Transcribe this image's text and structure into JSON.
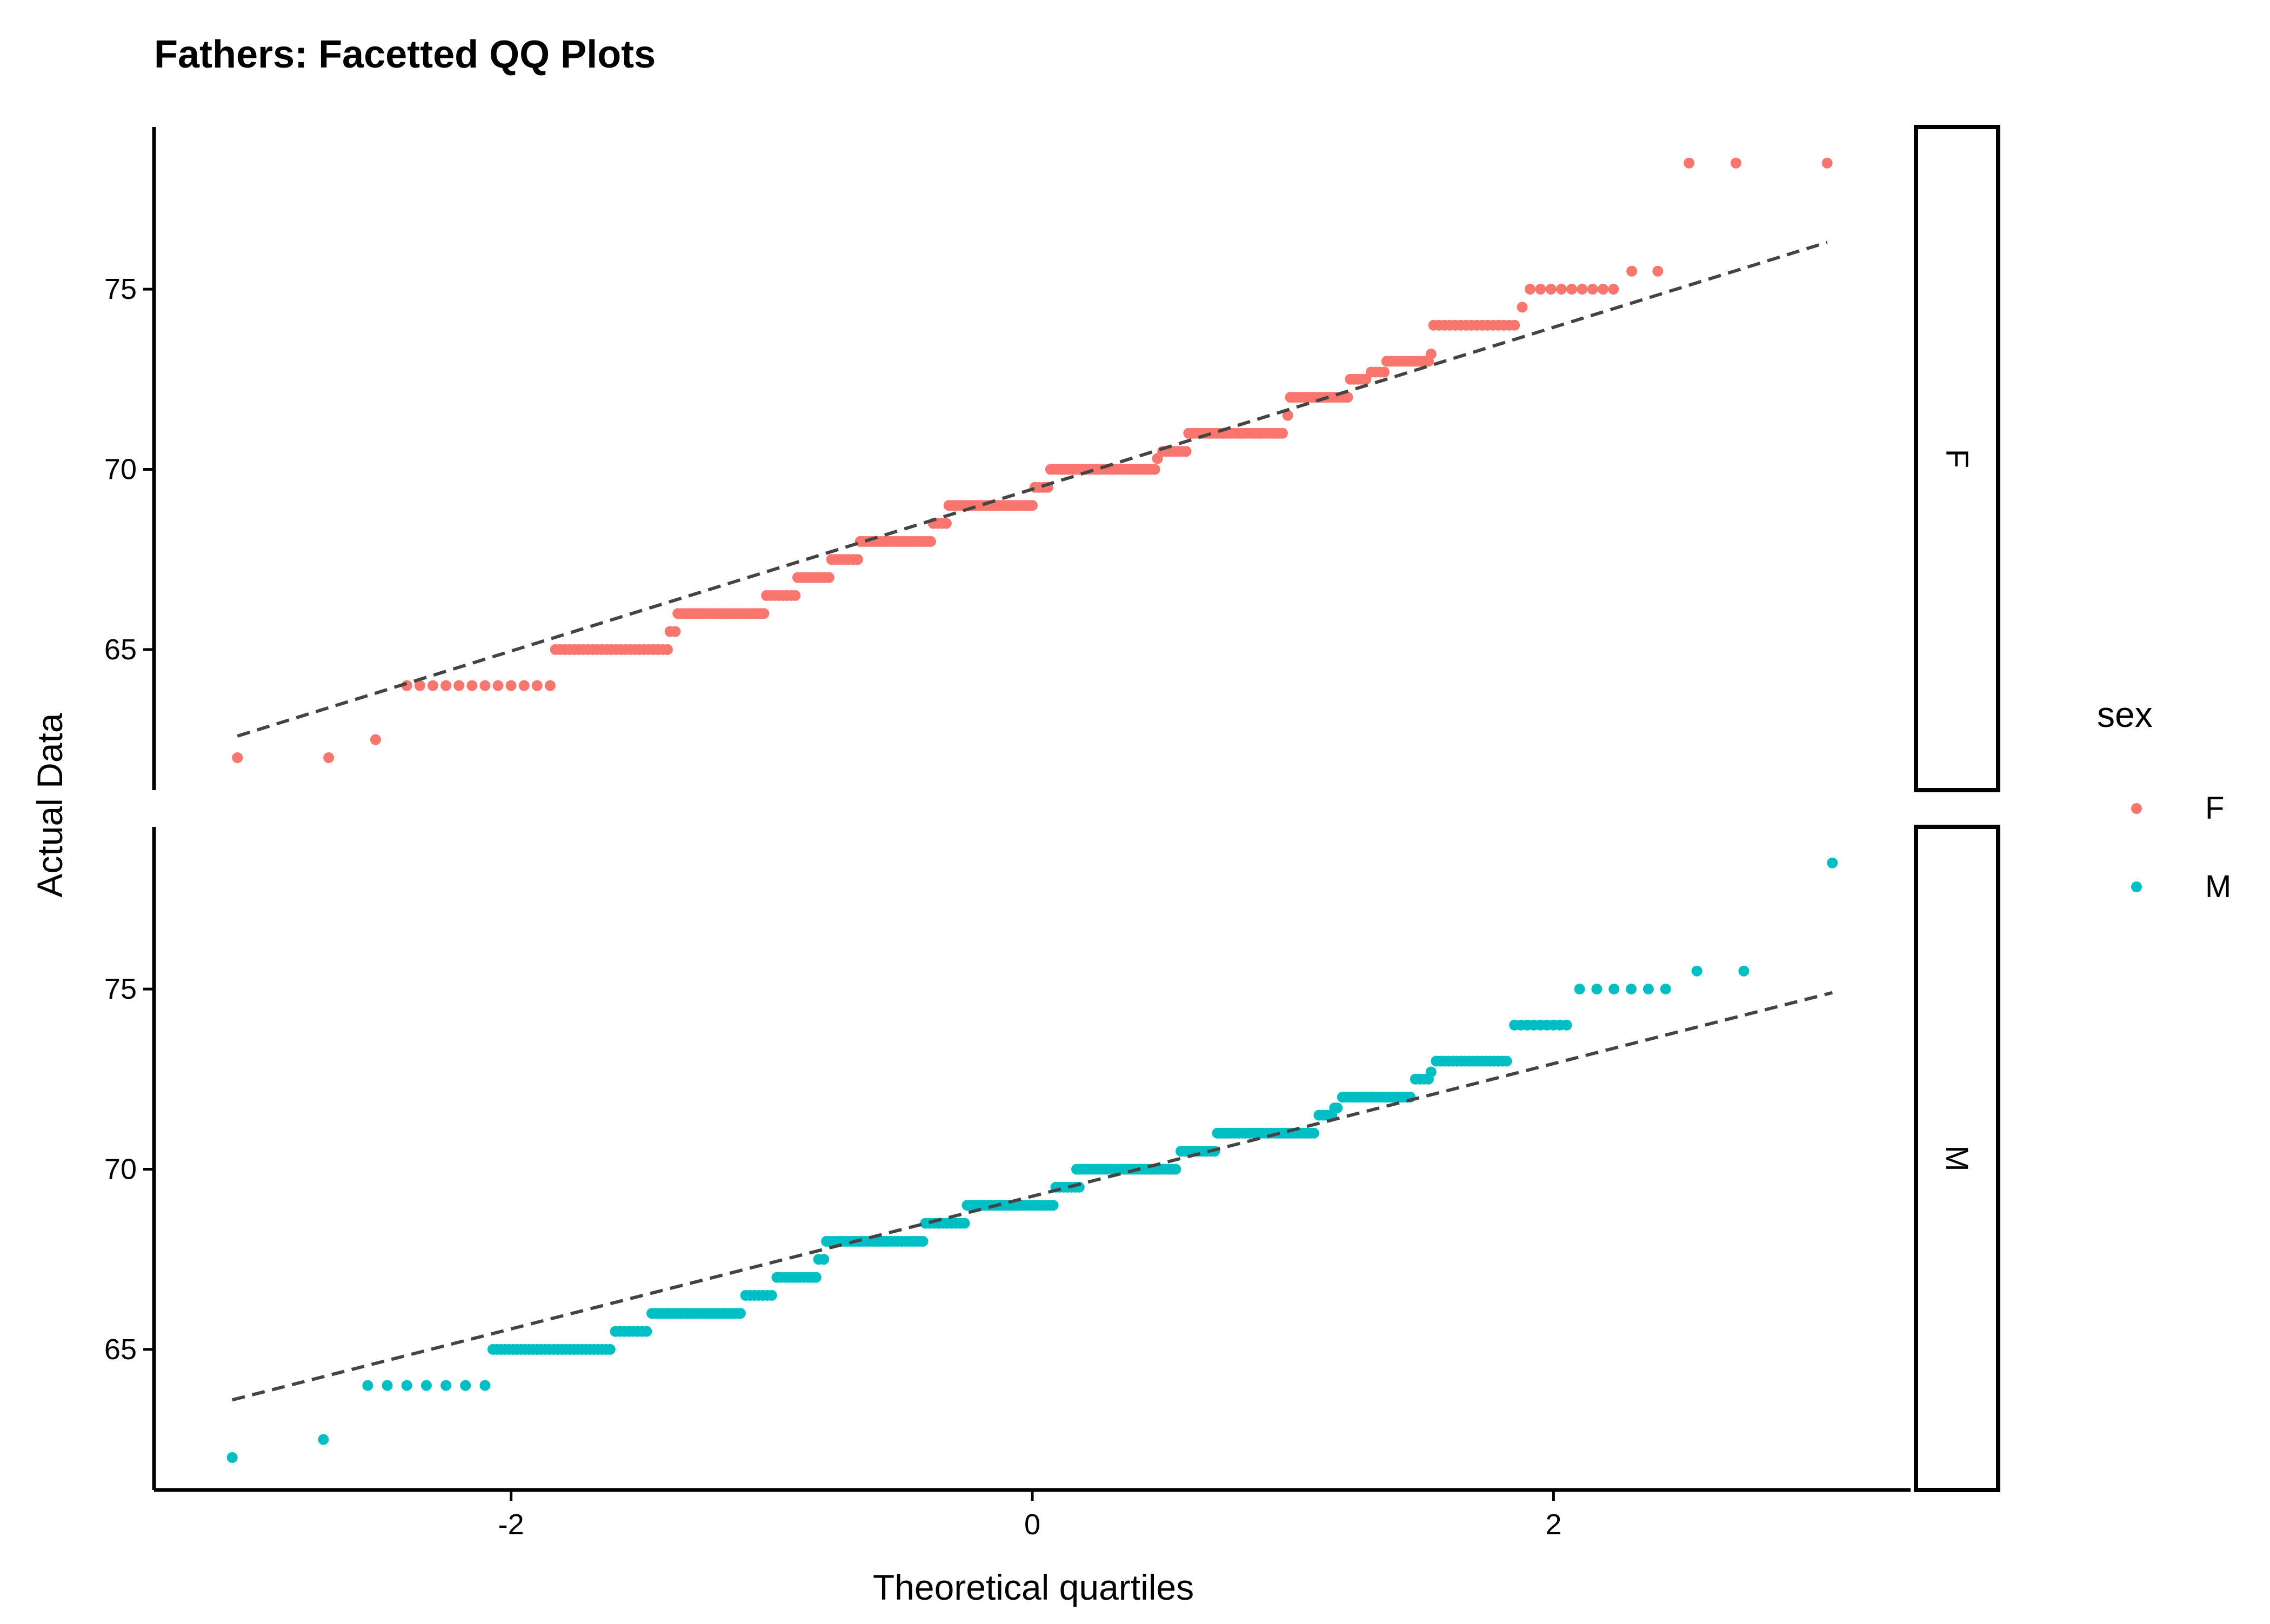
{
  "chart_data": {
    "type": "scatter",
    "title": "Fathers: Facetted QQ Plots",
    "xlabel": "Theoretical quartiles",
    "ylabel": "Actual Data",
    "xlim": [
      -3.37,
      3.37
    ],
    "ylim": [
      61.1,
      79.5
    ],
    "x_ticks": [
      -2,
      0,
      2
    ],
    "y_ticks": [
      65,
      70,
      75
    ],
    "legend": {
      "title": "sex",
      "position": "right",
      "entries": [
        {
          "label": "F",
          "color": "#F8766D"
        },
        {
          "label": "M",
          "color": "#00BFC4"
        }
      ]
    },
    "reference_line_color": "#444444",
    "facets": [
      {
        "label": "F",
        "color": "#F8766D",
        "line": {
          "x": [
            -3.05,
            3.05
          ],
          "y": [
            62.6,
            76.3
          ]
        },
        "steps": [
          {
            "y": 62.0,
            "x_from": -3.05,
            "x_to": -3.05,
            "n": 1
          },
          {
            "y": 62.0,
            "x_from": -2.7,
            "x_to": -2.7,
            "n": 1
          },
          {
            "y": 62.5,
            "x_from": -2.52,
            "x_to": -2.52,
            "n": 1
          },
          {
            "y": 64.0,
            "x_from": -2.4,
            "x_to": -1.85,
            "n": 12
          },
          {
            "y": 65.0,
            "x_from": -1.83,
            "x_to": -1.4,
            "n": 25
          },
          {
            "y": 65.5,
            "x_from": -1.39,
            "x_to": -1.37,
            "n": 2
          },
          {
            "y": 66.0,
            "x_from": -1.36,
            "x_to": -1.03,
            "n": 25
          },
          {
            "y": 66.5,
            "x_from": -1.02,
            "x_to": -0.91,
            "n": 8
          },
          {
            "y": 67.0,
            "x_from": -0.9,
            "x_to": -0.78,
            "n": 9
          },
          {
            "y": 67.5,
            "x_from": -0.77,
            "x_to": -0.67,
            "n": 7
          },
          {
            "y": 68.0,
            "x_from": -0.66,
            "x_to": -0.39,
            "n": 22
          },
          {
            "y": 68.5,
            "x_from": -0.38,
            "x_to": -0.33,
            "n": 4
          },
          {
            "y": 69.0,
            "x_from": -0.32,
            "x_to": 0.0,
            "n": 26
          },
          {
            "y": 69.5,
            "x_from": 0.01,
            "x_to": 0.06,
            "n": 4
          },
          {
            "y": 70.0,
            "x_from": 0.07,
            "x_to": 0.47,
            "n": 30
          },
          {
            "y": 70.3,
            "x_from": 0.48,
            "x_to": 0.48,
            "n": 1
          },
          {
            "y": 70.5,
            "x_from": 0.5,
            "x_to": 0.59,
            "n": 7
          },
          {
            "y": 71.0,
            "x_from": 0.6,
            "x_to": 0.96,
            "n": 28
          },
          {
            "y": 71.5,
            "x_from": 0.98,
            "x_to": 0.98,
            "n": 1
          },
          {
            "y": 72.0,
            "x_from": 0.99,
            "x_to": 1.21,
            "n": 17
          },
          {
            "y": 72.5,
            "x_from": 1.22,
            "x_to": 1.28,
            "n": 5
          },
          {
            "y": 72.7,
            "x_from": 1.3,
            "x_to": 1.35,
            "n": 4
          },
          {
            "y": 73.0,
            "x_from": 1.36,
            "x_to": 1.52,
            "n": 12
          },
          {
            "y": 73.2,
            "x_from": 1.53,
            "x_to": 1.53,
            "n": 1
          },
          {
            "y": 74.0,
            "x_from": 1.54,
            "x_to": 1.85,
            "n": 16
          },
          {
            "y": 74.5,
            "x_from": 1.88,
            "x_to": 1.88,
            "n": 1
          },
          {
            "y": 75.0,
            "x_from": 1.91,
            "x_to": 2.23,
            "n": 9
          },
          {
            "y": 75.5,
            "x_from": 2.3,
            "x_to": 2.4,
            "n": 2
          },
          {
            "y": 78.5,
            "x_from": 2.52,
            "x_to": 2.52,
            "n": 1
          },
          {
            "y": 78.5,
            "x_from": 2.7,
            "x_to": 2.7,
            "n": 1
          },
          {
            "y": 78.5,
            "x_from": 3.05,
            "x_to": 3.05,
            "n": 1
          }
        ]
      },
      {
        "label": "M",
        "color": "#00BFC4",
        "line": {
          "x": [
            -3.07,
            3.07
          ],
          "y": [
            63.6,
            74.9
          ]
        },
        "steps": [
          {
            "y": 62.0,
            "x_from": -3.07,
            "x_to": -3.07,
            "n": 1
          },
          {
            "y": 62.5,
            "x_from": -2.72,
            "x_to": -2.72,
            "n": 1
          },
          {
            "y": 64.0,
            "x_from": -2.55,
            "x_to": -2.1,
            "n": 7
          },
          {
            "y": 65.0,
            "x_from": -2.07,
            "x_to": -1.62,
            "n": 30
          },
          {
            "y": 65.5,
            "x_from": -1.6,
            "x_to": -1.48,
            "n": 8
          },
          {
            "y": 66.0,
            "x_from": -1.46,
            "x_to": -1.12,
            "n": 26
          },
          {
            "y": 66.5,
            "x_from": -1.1,
            "x_to": -1.0,
            "n": 7
          },
          {
            "y": 67.0,
            "x_from": -0.98,
            "x_to": -0.83,
            "n": 11
          },
          {
            "y": 67.5,
            "x_from": -0.82,
            "x_to": -0.8,
            "n": 2
          },
          {
            "y": 68.0,
            "x_from": -0.79,
            "x_to": -0.42,
            "n": 28
          },
          {
            "y": 68.5,
            "x_from": -0.41,
            "x_to": -0.26,
            "n": 10
          },
          {
            "y": 69.0,
            "x_from": -0.25,
            "x_to": 0.08,
            "n": 26
          },
          {
            "y": 69.5,
            "x_from": 0.09,
            "x_to": 0.18,
            "n": 7
          },
          {
            "y": 70.0,
            "x_from": 0.17,
            "x_to": 0.55,
            "n": 30
          },
          {
            "y": 70.5,
            "x_from": 0.57,
            "x_to": 0.7,
            "n": 9
          },
          {
            "y": 71.0,
            "x_from": 0.71,
            "x_to": 1.08,
            "n": 28
          },
          {
            "y": 71.5,
            "x_from": 1.1,
            "x_to": 1.15,
            "n": 4
          },
          {
            "y": 71.7,
            "x_from": 1.16,
            "x_to": 1.17,
            "n": 2
          },
          {
            "y": 72.0,
            "x_from": 1.19,
            "x_to": 1.45,
            "n": 20
          },
          {
            "y": 72.5,
            "x_from": 1.47,
            "x_to": 1.52,
            "n": 4
          },
          {
            "y": 72.7,
            "x_from": 1.53,
            "x_to": 1.53,
            "n": 1
          },
          {
            "y": 73.0,
            "x_from": 1.55,
            "x_to": 1.82,
            "n": 18
          },
          {
            "y": 74.0,
            "x_from": 1.85,
            "x_to": 2.05,
            "n": 9
          },
          {
            "y": 75.0,
            "x_from": 2.1,
            "x_to": 2.43,
            "n": 6
          },
          {
            "y": 75.5,
            "x_from": 2.55,
            "x_to": 2.55,
            "n": 1
          },
          {
            "y": 75.5,
            "x_from": 2.73,
            "x_to": 2.73,
            "n": 1
          },
          {
            "y": 78.5,
            "x_from": 3.07,
            "x_to": 3.07,
            "n": 1
          }
        ]
      }
    ]
  }
}
